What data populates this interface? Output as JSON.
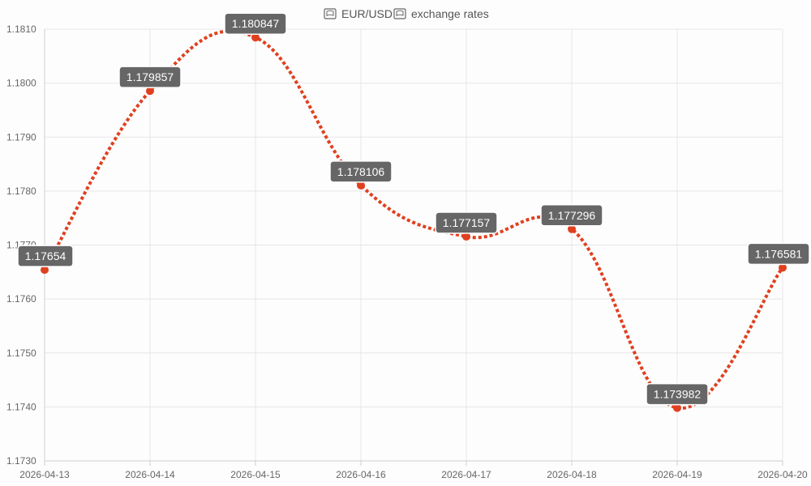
{
  "title": {
    "icon_left": "flag-icon",
    "icon_right": "flag-icon",
    "text_main": "EUR/USD",
    "text_rest": "exchange rates"
  },
  "colors": {
    "series": "#e0401f",
    "grid": "#e6e6e6",
    "label_bg": "#666666",
    "label_text": "#ffffff",
    "tick_text": "#666666"
  },
  "chart_data": {
    "type": "line",
    "categories": [
      "2026-04-13",
      "2026-04-14",
      "2026-04-15",
      "2026-04-16",
      "2026-04-17",
      "2026-04-18",
      "2026-04-19",
      "2026-04-20"
    ],
    "series": [
      {
        "values": [
          1.17654,
          1.179857,
          1.180847,
          1.178106,
          1.177157,
          1.177296,
          1.173982,
          1.176581
        ],
        "labels": [
          "1.17654",
          "1.179857",
          "1.180847",
          "1.178106",
          "1.177157",
          "1.177296",
          "1.173982",
          "1.176581"
        ],
        "line_style": "dotted",
        "smooth": true
      }
    ],
    "ylim": [
      1.173,
      1.181
    ],
    "yticks": [
      "1.1730",
      "1.1740",
      "1.1750",
      "1.1760",
      "1.1770",
      "1.1780",
      "1.1790",
      "1.1800",
      "1.1810"
    ],
    "grid": true,
    "legend": "none"
  }
}
